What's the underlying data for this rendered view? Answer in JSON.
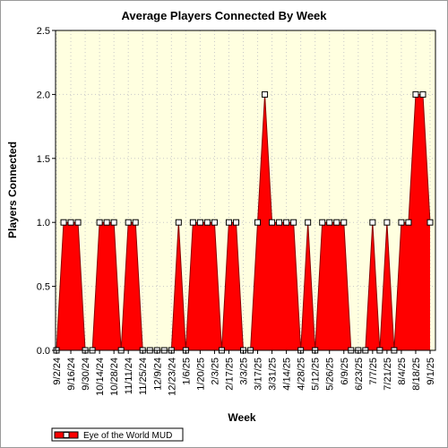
{
  "chart_data": {
    "type": "area",
    "title": "Average Players Connected By Week",
    "xlabel": "Week",
    "ylabel": "Players Connected",
    "ylim": [
      0,
      2.5
    ],
    "yticks": [
      "0.0",
      "0.5",
      "1.0",
      "1.5",
      "2.0",
      "2.5"
    ],
    "x_tick_labels": [
      "9/2/24",
      "9/16/24",
      "9/30/24",
      "10/14/24",
      "10/28/24",
      "11/11/24",
      "11/25/24",
      "12/9/24",
      "12/23/24",
      "1/6/25",
      "1/20/25",
      "2/3/25",
      "2/17/25",
      "3/3/25",
      "3/17/25",
      "3/31/25",
      "4/14/25",
      "4/28/25",
      "5/12/25",
      "5/26/25",
      "6/9/25",
      "6/23/25",
      "7/7/25",
      "7/21/25",
      "8/4/25",
      "8/18/25",
      "9/1/25"
    ],
    "grid": true,
    "legend_position": "bottom-left",
    "background_color": "#ffffe0",
    "series": [
      {
        "name": "Eye of the World MUD",
        "color": "#ff0000",
        "values": [
          0,
          1,
          1,
          1,
          0,
          0,
          1,
          1,
          1,
          0,
          1,
          1,
          0,
          0,
          0,
          0,
          0,
          1,
          0,
          1,
          1,
          1,
          1,
          0,
          1,
          1,
          0,
          0,
          1,
          2,
          1,
          1,
          1,
          1,
          0,
          1,
          0,
          1,
          1,
          1,
          1,
          0,
          0,
          0,
          1,
          0,
          1,
          0,
          1,
          1,
          2,
          2,
          1
        ]
      }
    ]
  }
}
